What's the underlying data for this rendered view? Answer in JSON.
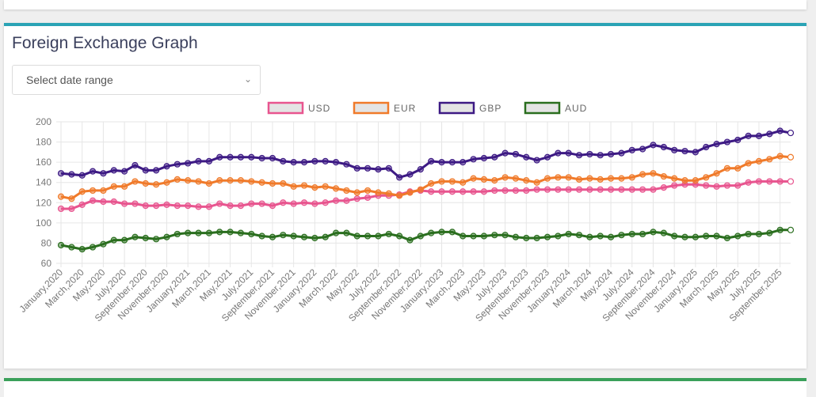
{
  "card": {
    "title": "Foreign Exchange Graph"
  },
  "date_select": {
    "placeholder": "Select date range",
    "icon": "chevron-down-icon"
  },
  "chart_data": {
    "type": "line",
    "ylim": [
      60,
      200
    ],
    "yticks": [
      60,
      80,
      100,
      120,
      140,
      160,
      180,
      200
    ],
    "grid": true,
    "legend": "top",
    "start": {
      "month": "January",
      "year": 2020
    },
    "x_tick_labels": [
      "January,2020",
      "March,2020",
      "May,2020",
      "July,2020",
      "September,2020",
      "November,2020",
      "January,2021",
      "March,2021",
      "May,2021",
      "July,2021",
      "September,2021",
      "November,2021",
      "January,2022",
      "March,2022",
      "May,2022",
      "July,2022",
      "September,2022",
      "November,2022",
      "January,2023",
      "March,2023",
      "May,2023",
      "July,2023",
      "September,2023",
      "November,2023",
      "January,2024",
      "March,2024",
      "May,2024",
      "July,2024",
      "September,2024",
      "November,2024",
      "January,2025",
      "March,2025",
      "May,2025",
      "July,2025",
      "September,2025"
    ],
    "series": [
      {
        "name": "USD",
        "color": "#e8558f",
        "values": [
          114,
          114,
          118,
          122,
          121,
          121,
          119,
          119,
          117,
          117,
          118,
          117,
          117,
          116,
          116,
          119,
          117,
          117,
          119,
          119,
          117,
          120,
          119,
          120,
          119,
          120,
          122,
          122,
          124,
          125,
          127,
          127,
          128,
          131,
          132,
          131,
          131,
          131,
          131,
          131,
          131,
          132,
          132,
          132,
          132,
          133,
          133,
          133,
          133,
          133,
          133,
          133,
          133,
          133,
          133,
          133,
          133,
          135,
          137,
          138,
          138,
          137,
          136,
          137,
          137,
          140,
          141,
          141,
          141,
          141
        ]
      },
      {
        "name": "EUR",
        "color": "#f07a2a",
        "values": [
          126,
          124,
          131,
          132,
          132,
          136,
          136,
          141,
          139,
          138,
          140,
          143,
          142,
          141,
          139,
          142,
          142,
          142,
          141,
          140,
          139,
          139,
          136,
          137,
          135,
          136,
          134,
          132,
          130,
          132,
          130,
          129,
          127,
          130,
          133,
          139,
          141,
          141,
          140,
          144,
          143,
          142,
          145,
          144,
          142,
          140,
          144,
          145,
          145,
          143,
          144,
          143,
          144,
          144,
          145,
          148,
          149,
          146,
          144,
          142,
          142,
          145,
          149,
          154,
          154,
          159,
          161,
          163,
          166,
          165
        ]
      },
      {
        "name": "GBP",
        "color": "#3d1a84",
        "values": [
          149,
          148,
          147,
          151,
          149,
          152,
          151,
          157,
          152,
          152,
          156,
          158,
          159,
          161,
          161,
          165,
          165,
          165,
          165,
          164,
          164,
          161,
          160,
          160,
          161,
          161,
          160,
          158,
          154,
          154,
          153,
          154,
          145,
          148,
          153,
          161,
          160,
          160,
          160,
          163,
          164,
          165,
          169,
          168,
          165,
          162,
          165,
          169,
          169,
          167,
          168,
          167,
          168,
          169,
          172,
          173,
          177,
          175,
          172,
          171,
          170,
          175,
          178,
          180,
          182,
          186,
          186,
          188,
          191,
          189
        ]
      },
      {
        "name": "AUD",
        "color": "#2a6e1e",
        "values": [
          78,
          76,
          74,
          76,
          79,
          83,
          83,
          86,
          85,
          84,
          86,
          89,
          90,
          90,
          90,
          91,
          91,
          90,
          89,
          87,
          86,
          88,
          87,
          86,
          85,
          86,
          90,
          90,
          87,
          87,
          87,
          89,
          87,
          83,
          87,
          90,
          91,
          91,
          87,
          87,
          87,
          88,
          88,
          86,
          85,
          85,
          86,
          87,
          89,
          88,
          86,
          87,
          86,
          88,
          89,
          89,
          91,
          90,
          87,
          86,
          86,
          87,
          87,
          85,
          87,
          89,
          89,
          90,
          93,
          93
        ]
      }
    ]
  }
}
